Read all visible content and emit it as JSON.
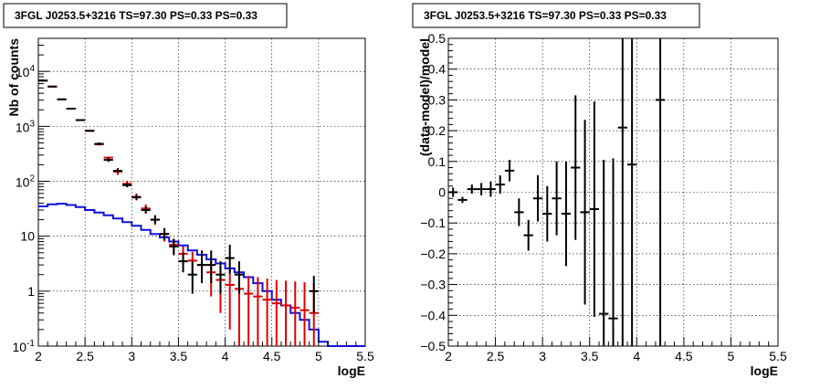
{
  "colors": {
    "data": "#000000",
    "model": "#e00000",
    "background": "#1010dd",
    "grid": "#000000"
  },
  "chart_data": [
    {
      "type": "scatter",
      "title": "3FGL J0253.5+3216 TS=97.30 PS=0.33 PS=0.33",
      "xlabel": "logE",
      "ylabel": "Nb of counts",
      "xlim": [
        2,
        5.5
      ],
      "ylim": [
        0.1,
        40000
      ],
      "yscale": "log",
      "grid": true,
      "x_ticks": [
        "2",
        "2.5",
        "3",
        "3.5",
        "4",
        "4.5",
        "5",
        "5.5"
      ],
      "y_ticks": [
        "10^-1",
        "1",
        "10",
        "10^2",
        "10^3",
        "10^4"
      ],
      "series": [
        {
          "style": "errorbar",
          "color": "black",
          "x": [
            2.05,
            2.15,
            2.25,
            2.35,
            2.45,
            2.55,
            2.65,
            2.75,
            2.85,
            2.95,
            3.05,
            3.15,
            3.25,
            3.35,
            3.45,
            3.55,
            3.65,
            3.75,
            3.85,
            3.95,
            4.05,
            4.15,
            4.25,
            4.35,
            4.45,
            4.55,
            4.65,
            4.75,
            4.85,
            4.95
          ],
          "y": [
            6800,
            5300,
            3100,
            2100,
            1300,
            830,
            480,
            245,
            155,
            85,
            51,
            30,
            20,
            11,
            6.5,
            3.5,
            2.0,
            3.0,
            3.0,
            2.0,
            4.0,
            2.0,
            0,
            0,
            0,
            0,
            0,
            0,
            0,
            1.0
          ],
          "yerr_lo": [
            0,
            0,
            0,
            0,
            0,
            0,
            0,
            0,
            0,
            0,
            0,
            0,
            0,
            0,
            0,
            0,
            0,
            0,
            0,
            0,
            0,
            0,
            0,
            0,
            0,
            0,
            0,
            0,
            0,
            0
          ],
          "yerr_hi": [
            0,
            0,
            0,
            0,
            0,
            0,
            0,
            0,
            0,
            0,
            0,
            0,
            0,
            0,
            0,
            0,
            0,
            0,
            0,
            0,
            0,
            0,
            0,
            0,
            0,
            0,
            0,
            0,
            0,
            0
          ],
          "yerr_pairs": [
            [
              6800,
              6800
            ],
            [
              5300,
              5300
            ],
            [
              3100,
              3100
            ],
            [
              2100,
              2100
            ],
            [
              1300,
              1300
            ],
            [
              830,
              830
            ],
            [
              450,
              510
            ],
            [
              225,
              270
            ],
            [
              145,
              170
            ],
            [
              78,
              93
            ],
            [
              46,
              57
            ],
            [
              26,
              35
            ],
            [
              17,
              24
            ],
            [
              8.5,
              14
            ],
            [
              4.5,
              9
            ],
            [
              2.2,
              5
            ],
            [
              0.9,
              3.5
            ],
            [
              1.4,
              5.5
            ],
            [
              1.4,
              5.5
            ],
            [
              0.9,
              3.5
            ],
            [
              2.1,
              7
            ],
            [
              0.9,
              3.5
            ],
            [
              0,
              0
            ],
            [
              0,
              0
            ],
            [
              0,
              0
            ],
            [
              0,
              0
            ],
            [
              0,
              0
            ],
            [
              0,
              0
            ],
            [
              0,
              0
            ],
            [
              0.4,
              1.9
            ]
          ]
        },
        {
          "style": "errorbar",
          "color": "red",
          "x": [
            2.05,
            2.15,
            2.25,
            2.35,
            2.45,
            2.55,
            2.65,
            2.75,
            2.85,
            2.95,
            3.05,
            3.15,
            3.25,
            3.35,
            3.45,
            3.55,
            3.65,
            3.75,
            3.85,
            3.95,
            4.05,
            4.15,
            4.25,
            4.35,
            4.45,
            4.55,
            4.65,
            4.75,
            4.85,
            4.95
          ],
          "y": [
            6800,
            5300,
            3100,
            2100,
            1300,
            830,
            470,
            270,
            150,
            90,
            52,
            32,
            20,
            11,
            7.0,
            4.8,
            3.6,
            3.0,
            2.2,
            1.6,
            1.3,
            1.1,
            0.9,
            0.8,
            0.7,
            0.6,
            0.55,
            0.5,
            0.45,
            0.4
          ],
          "yerr_pairs": [
            [
              6800,
              6800
            ],
            [
              5300,
              5300
            ],
            [
              3100,
              3100
            ],
            [
              2100,
              2100
            ],
            [
              1300,
              1300
            ],
            [
              830,
              830
            ],
            [
              470,
              470
            ],
            [
              270,
              270
            ],
            [
              130,
              175
            ],
            [
              80,
              102
            ],
            [
              45,
              60
            ],
            [
              26,
              38
            ],
            [
              16,
              24
            ],
            [
              8,
              14
            ],
            [
              4.8,
              9
            ],
            [
              3.0,
              6.6
            ],
            [
              1.8,
              5.2
            ],
            [
              1.4,
              4.6
            ],
            [
              0.8,
              3.6
            ],
            [
              0.4,
              2.8
            ],
            [
              0.2,
              2.4
            ],
            [
              0.1,
              2.1
            ],
            [
              0.1,
              1.9
            ],
            [
              0.1,
              1.8
            ],
            [
              0.1,
              1.7
            ],
            [
              0.1,
              1.6
            ],
            [
              0.1,
              1.55
            ],
            [
              0.1,
              1.5
            ],
            [
              0.1,
              1.45
            ],
            [
              0.1,
              1.4
            ]
          ]
        },
        {
          "style": "step",
          "color": "blue",
          "edges": [
            2.0,
            2.1,
            2.2,
            2.3,
            2.4,
            2.5,
            2.6,
            2.7,
            2.8,
            2.9,
            3.0,
            3.1,
            3.2,
            3.3,
            3.4,
            3.5,
            3.6,
            3.7,
            3.8,
            3.9,
            4.0,
            4.1,
            4.2,
            4.3,
            4.4,
            4.5,
            4.6,
            4.7,
            4.8,
            4.9,
            5.0,
            5.1,
            5.2,
            5.3,
            5.4,
            5.5
          ],
          "values": [
            35,
            38,
            39,
            37,
            34,
            30,
            27,
            24,
            21,
            18,
            15.5,
            13,
            11,
            9.5,
            8,
            6.8,
            5.5,
            4.6,
            3.8,
            3.2,
            2.6,
            2.2,
            1.8,
            1.4,
            1.0,
            0.7,
            0.55,
            0.4,
            0.3,
            0.2,
            0.12,
            0.1,
            0.1,
            0.1,
            0.1
          ]
        }
      ]
    },
    {
      "type": "scatter",
      "title": "3FGL J0253.5+3216 TS=97.30 PS=0.33 PS=0.33",
      "xlabel": "logE",
      "ylabel": "(data-model)/model",
      "xlim": [
        2,
        5.5
      ],
      "ylim": [
        -0.5,
        0.5
      ],
      "grid": true,
      "x_ticks": [
        "2",
        "2.5",
        "3",
        "3.5",
        "4",
        "4.5",
        "5",
        "5.5"
      ],
      "y_ticks": [
        "−0.5",
        "−0.4",
        "−0.3",
        "−0.2",
        "−0.1",
        "0",
        "0.1",
        "0.2",
        "0.3",
        "0.4",
        "0.5"
      ],
      "series": [
        {
          "style": "errorbar",
          "color": "black",
          "x": [
            2.05,
            2.15,
            2.25,
            2.35,
            2.45,
            2.55,
            2.65,
            2.75,
            2.85,
            2.95,
            3.05,
            3.15,
            3.25,
            3.35,
            3.45,
            3.55,
            3.65,
            3.75,
            3.85,
            3.95,
            4.25
          ],
          "y": [
            0.0,
            -0.025,
            0.01,
            0.01,
            0.01,
            0.025,
            0.07,
            -0.065,
            -0.14,
            -0.02,
            -0.07,
            -0.02,
            -0.07,
            0.08,
            -0.065,
            -0.055,
            -0.395,
            -0.41,
            0.21,
            0.09,
            0.3
          ],
          "yerr": [
            0.015,
            0.01,
            0.015,
            0.02,
            0.025,
            0.03,
            0.035,
            0.045,
            0.05,
            0.075,
            0.09,
            0.12,
            0.17,
            0.235,
            0.3,
            0.35,
            0.5,
            0.52,
            0.8,
            0.9,
            1.0
          ]
        }
      ]
    }
  ]
}
